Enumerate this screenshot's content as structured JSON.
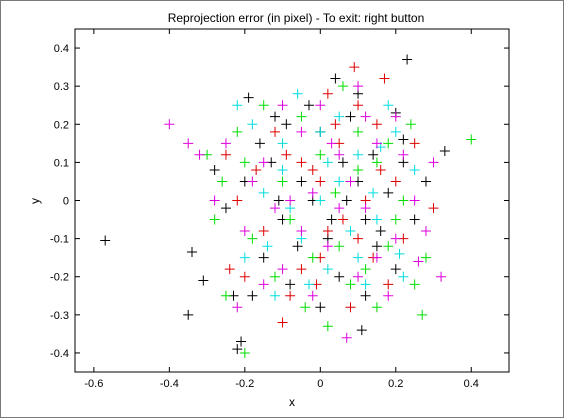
{
  "chart_data": {
    "type": "scatter",
    "title": "Reprojection error (in pixel) - To exit: right button",
    "xlabel": "x",
    "ylabel": "y",
    "xlim": [
      -0.65,
      0.5
    ],
    "ylim": [
      -0.45,
      0.45
    ],
    "xticks": [
      -0.6,
      -0.4,
      -0.2,
      0,
      0.2,
      0.4
    ],
    "yticks": [
      -0.4,
      -0.3,
      -0.2,
      -0.1,
      0,
      0.1,
      0.2,
      0.3,
      0.4
    ],
    "xtick_labels": [
      "-0.6",
      "-0.4",
      "-0.2",
      "0",
      "0.2",
      "0.4"
    ],
    "ytick_labels": [
      "-0.4",
      "-0.3",
      "-0.2",
      "-0.1",
      "0",
      "0.1",
      "0.2",
      "0.3",
      "0.4"
    ],
    "grid": false,
    "marker": "plus",
    "series": [
      {
        "color": "#000000",
        "points": [
          [
            -0.57,
            -0.105
          ],
          [
            0.23,
            0.37
          ],
          [
            -0.35,
            -0.3
          ],
          [
            -0.21,
            -0.37
          ],
          [
            -0.22,
            -0.39
          ],
          [
            0.04,
            0.32
          ],
          [
            -0.19,
            0.27
          ],
          [
            0.2,
            0.23
          ],
          [
            -0.31,
            -0.21
          ],
          [
            -0.34,
            -0.135
          ],
          [
            0.11,
            -0.34
          ],
          [
            0.22,
            0.16
          ],
          [
            0.33,
            0.13
          ],
          [
            -0.23,
            -0.25
          ],
          [
            -0.12,
            0.22
          ],
          [
            -0.09,
            0.2
          ],
          [
            0.0,
            0.18
          ],
          [
            0.06,
            0.1
          ],
          [
            0.1,
            0.05
          ],
          [
            -0.05,
            0.05
          ],
          [
            -0.1,
            -0.05
          ],
          [
            0.02,
            -0.1
          ],
          [
            0.15,
            -0.12
          ],
          [
            -0.15,
            -0.15
          ],
          [
            0.05,
            -0.2
          ],
          [
            -0.02,
            0.0
          ],
          [
            0.18,
            0.02
          ],
          [
            -0.2,
            0.05
          ],
          [
            0.12,
            -0.25
          ],
          [
            -0.08,
            -0.22
          ],
          [
            0.25,
            -0.05
          ],
          [
            -0.25,
            -0.02
          ],
          [
            0.08,
            0.22
          ],
          [
            0.14,
            0.12
          ],
          [
            -0.13,
            0.1
          ],
          [
            0.03,
            -0.05
          ],
          [
            -0.06,
            -0.12
          ],
          [
            0.2,
            -0.18
          ],
          [
            -0.18,
            -0.25
          ],
          [
            0.0,
            -0.28
          ],
          [
            0.28,
            0.05
          ],
          [
            -0.28,
            0.08
          ],
          [
            0.1,
            0.28
          ],
          [
            -0.03,
            0.25
          ],
          [
            0.16,
            -0.08
          ],
          [
            -0.11,
            0.0
          ],
          [
            0.07,
            0.0
          ],
          [
            -0.16,
            0.15
          ],
          [
            0.22,
            0.1
          ],
          [
            0.12,
            -0.05
          ]
        ]
      },
      {
        "color": "#dd0000",
        "points": [
          [
            0.09,
            0.35
          ],
          [
            0.17,
            0.32
          ],
          [
            -0.1,
            -0.32
          ],
          [
            -0.05,
            0.1
          ],
          [
            0.05,
            0.15
          ],
          [
            0.1,
            -0.1
          ],
          [
            -0.15,
            -0.08
          ],
          [
            0.2,
            0.05
          ],
          [
            -0.22,
            0.0
          ],
          [
            0.0,
            -0.15
          ],
          [
            0.15,
            0.2
          ],
          [
            -0.08,
            -0.25
          ],
          [
            0.18,
            -0.22
          ],
          [
            -0.2,
            -0.2
          ],
          [
            0.25,
            0.15
          ],
          [
            -0.12,
            0.18
          ],
          [
            0.02,
            0.28
          ],
          [
            0.08,
            -0.28
          ],
          [
            -0.02,
            0.08
          ],
          [
            0.12,
            0.0
          ],
          [
            -0.17,
            0.08
          ],
          [
            0.06,
            -0.05
          ],
          [
            -0.05,
            -0.18
          ],
          [
            0.14,
            -0.15
          ],
          [
            0.22,
            -0.1
          ],
          [
            -0.25,
            0.12
          ],
          [
            0.0,
            0.05
          ],
          [
            0.04,
            0.2
          ],
          [
            -0.09,
            0.12
          ],
          [
            0.16,
            0.08
          ],
          [
            -0.24,
            -0.18
          ],
          [
            0.3,
            -0.02
          ],
          [
            -0.01,
            -0.22
          ],
          [
            0.1,
            0.25
          ],
          [
            0.02,
            -0.08
          ]
        ]
      },
      {
        "color": "#00dd00",
        "points": [
          [
            0.4,
            0.16
          ],
          [
            -0.2,
            -0.4
          ],
          [
            0.02,
            -0.33
          ],
          [
            0.27,
            -0.3
          ],
          [
            -0.3,
            0.12
          ],
          [
            -0.26,
            0.05
          ],
          [
            0.1,
            0.18
          ],
          [
            -0.1,
            0.05
          ],
          [
            0.05,
            -0.12
          ],
          [
            0.2,
            -0.05
          ],
          [
            -0.18,
            -0.1
          ],
          [
            0.15,
            0.1
          ],
          [
            -0.05,
            0.22
          ],
          [
            0.08,
            -0.22
          ],
          [
            -0.22,
            0.18
          ],
          [
            0.24,
            0.2
          ],
          [
            -0.15,
            0.25
          ],
          [
            0.0,
            0.12
          ],
          [
            0.12,
            -0.18
          ],
          [
            -0.08,
            -0.05
          ],
          [
            0.18,
            0.15
          ],
          [
            -0.12,
            -0.2
          ],
          [
            0.28,
            -0.15
          ],
          [
            -0.28,
            -0.05
          ],
          [
            0.04,
            0.02
          ],
          [
            0.15,
            -0.28
          ],
          [
            -0.04,
            -0.28
          ],
          [
            0.22,
            0.0
          ],
          [
            -0.2,
            0.1
          ],
          [
            0.1,
            0.08
          ],
          [
            0.25,
            -0.22
          ],
          [
            -0.25,
            -0.25
          ],
          [
            0.06,
            0.3
          ],
          [
            -0.02,
            -0.15
          ],
          [
            0.18,
            -0.12
          ]
        ]
      },
      {
        "color": "#00dddd",
        "points": [
          [
            -0.22,
            0.25
          ],
          [
            0.21,
            -0.14
          ],
          [
            0.0,
            0.0
          ],
          [
            0.1,
            0.12
          ],
          [
            -0.1,
            0.15
          ],
          [
            0.15,
            -0.05
          ],
          [
            -0.05,
            -0.1
          ],
          [
            0.05,
            0.22
          ],
          [
            -0.15,
            0.02
          ],
          [
            0.2,
            0.18
          ],
          [
            -0.2,
            -0.15
          ],
          [
            0.02,
            -0.18
          ],
          [
            0.12,
            -0.22
          ],
          [
            -0.12,
            -0.25
          ],
          [
            0.25,
            0.08
          ],
          [
            -0.06,
            0.28
          ],
          [
            0.08,
            -0.08
          ],
          [
            0.18,
            0.25
          ],
          [
            -0.18,
            0.2
          ],
          [
            0.0,
            0.18
          ],
          [
            0.14,
            0.02
          ],
          [
            -0.08,
            -0.02
          ],
          [
            0.22,
            -0.2
          ],
          [
            0.05,
            0.05
          ],
          [
            -0.03,
            -0.22
          ],
          [
            0.16,
            0.14
          ],
          [
            -0.14,
            -0.12
          ],
          [
            0.1,
            -0.15
          ],
          [
            0.02,
            0.1
          ],
          [
            -0.1,
            0.08
          ]
        ]
      },
      {
        "color": "#dd00dd",
        "points": [
          [
            -0.4,
            0.2
          ],
          [
            0.07,
            -0.36
          ],
          [
            -0.35,
            0.15
          ],
          [
            -0.32,
            0.12
          ],
          [
            0.3,
            0.1
          ],
          [
            0.32,
            -0.2
          ],
          [
            -0.15,
            0.1
          ],
          [
            0.05,
            -0.02
          ],
          [
            0.15,
            0.15
          ],
          [
            -0.05,
            0.18
          ],
          [
            0.1,
            -0.2
          ],
          [
            -0.2,
            -0.08
          ],
          [
            0.2,
            -0.1
          ],
          [
            -0.1,
            -0.18
          ],
          [
            0.0,
            0.25
          ],
          [
            0.25,
            0.0
          ],
          [
            -0.25,
            0.15
          ],
          [
            0.12,
            0.22
          ],
          [
            -0.02,
            -0.25
          ],
          [
            0.18,
            -0.25
          ],
          [
            -0.18,
            0.05
          ],
          [
            0.08,
            0.05
          ],
          [
            -0.12,
            -0.02
          ],
          [
            0.22,
            0.12
          ],
          [
            -0.08,
            0.0
          ],
          [
            0.05,
            0.12
          ],
          [
            0.15,
            -0.15
          ],
          [
            -0.15,
            -0.22
          ],
          [
            0.28,
            -0.08
          ],
          [
            -0.28,
            0.0
          ],
          [
            0.03,
            0.15
          ],
          [
            -0.05,
            -0.08
          ],
          [
            0.12,
            -0.02
          ],
          [
            0.2,
            0.22
          ],
          [
            -0.22,
            -0.28
          ],
          [
            0.02,
            -0.12
          ],
          [
            0.1,
            0.3
          ],
          [
            -0.1,
            0.25
          ],
          [
            0.26,
            -0.16
          ],
          [
            -0.02,
            0.02
          ]
        ]
      }
    ]
  }
}
